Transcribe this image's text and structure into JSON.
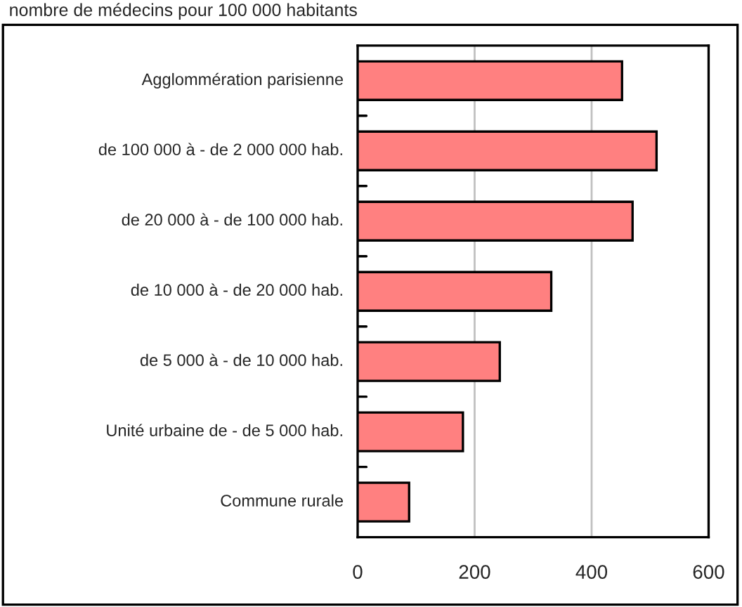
{
  "chart_data": {
    "type": "bar",
    "orientation": "horizontal",
    "title": "nombre de médecins pour 100 000 habitants",
    "categories": [
      "Agglommération parisienne",
      "de 100 000 à - de 2 000 000 hab.",
      "de 20 000 à - de 100 000 hab.",
      "de 10 000 à - de 20 000 hab.",
      "de 5 000 à - de 10 000 hab.",
      "Unité urbaine de - de 5 000 hab.",
      "Commune rurale"
    ],
    "values": [
      452,
      511,
      470,
      331,
      243,
      180,
      88
    ],
    "color": "#ff8080",
    "xlim": [
      0,
      600
    ],
    "xticks": [
      0,
      200,
      400,
      600
    ],
    "grid": "x",
    "legend": false
  }
}
